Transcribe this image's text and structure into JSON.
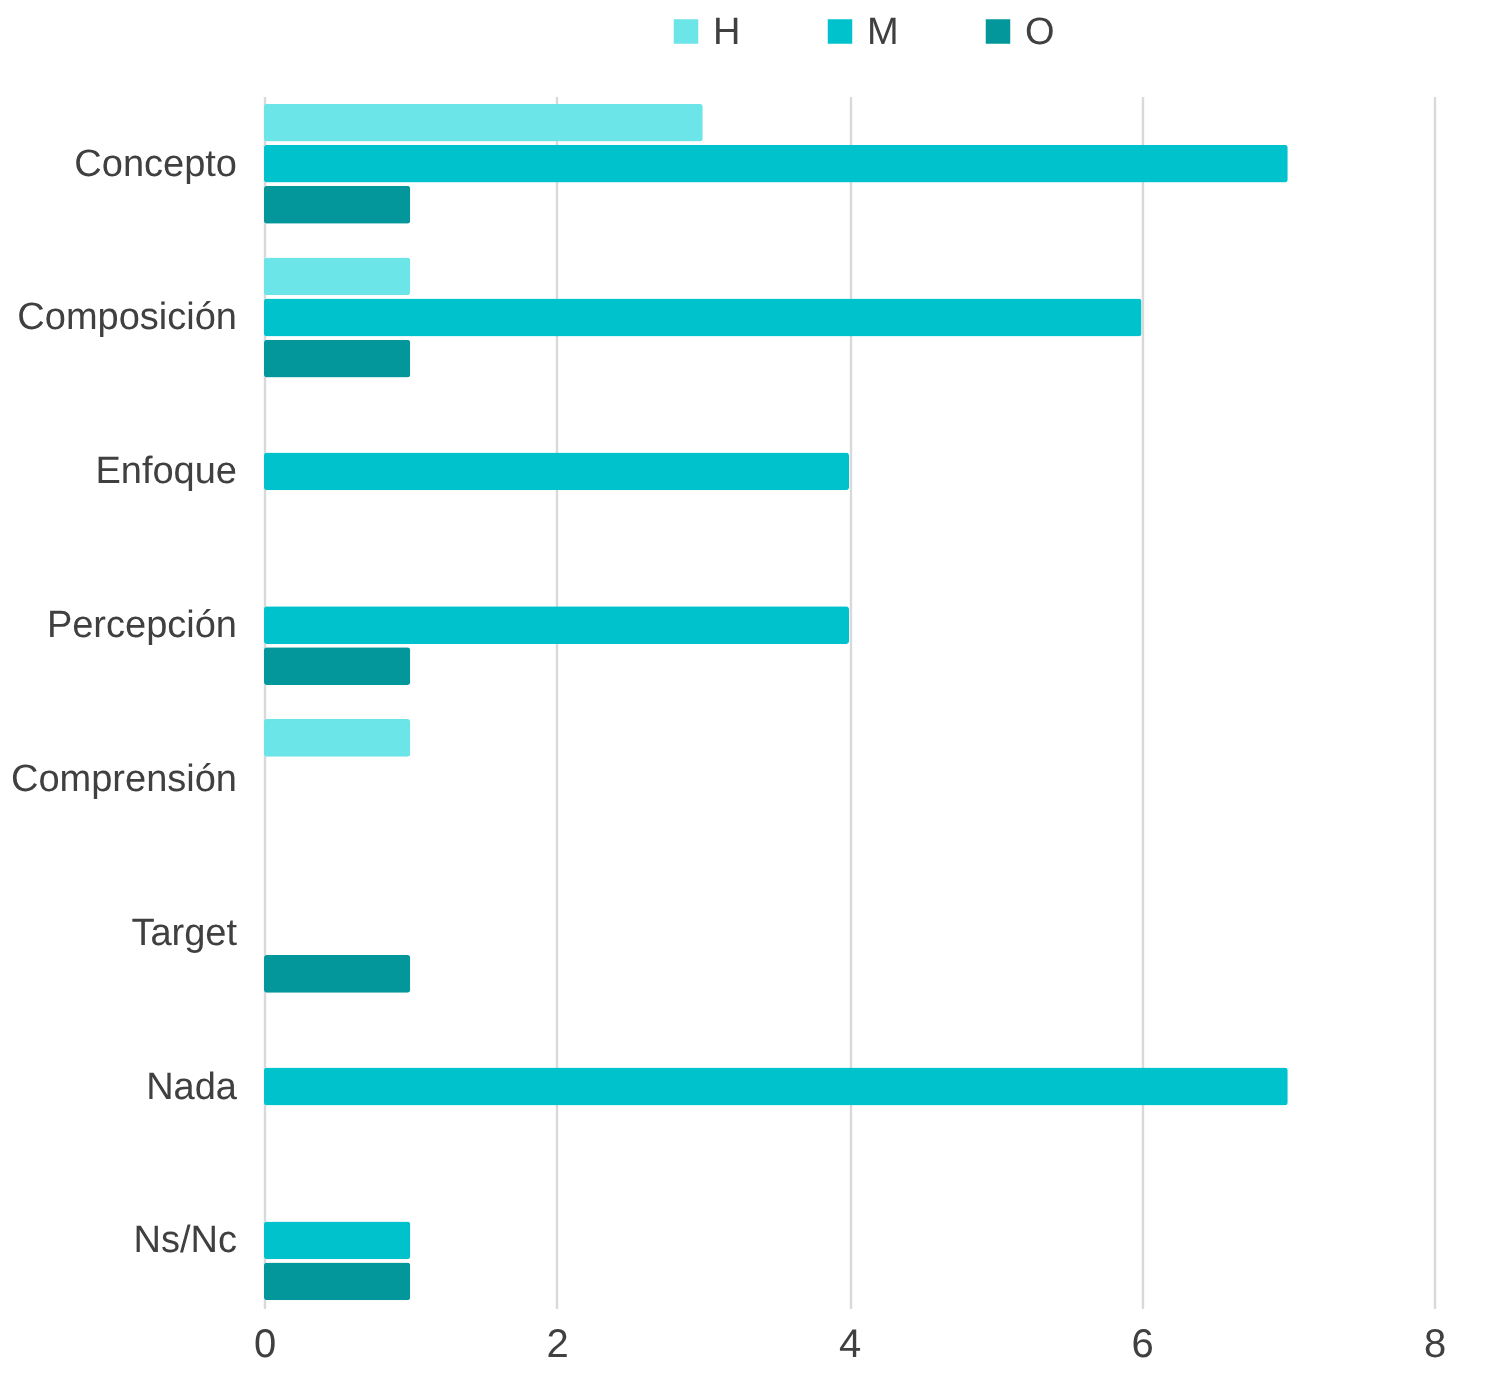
{
  "chart_data": {
    "type": "bar",
    "orientation": "horizontal",
    "categories": [
      "Concepto",
      "Composición",
      "Enfoque",
      "Percepción",
      "Comprensión",
      "Target",
      "Nada",
      "Ns/Nc"
    ],
    "series": [
      {
        "name": "H",
        "color": "#6ce5e8",
        "values": [
          3,
          1,
          null,
          null,
          1,
          null,
          null,
          null
        ]
      },
      {
        "name": "M",
        "color": "#00c2cc",
        "values": [
          7,
          6,
          4,
          4,
          null,
          null,
          7,
          1
        ]
      },
      {
        "name": "O",
        "color": "#03969b",
        "values": [
          1,
          1,
          null,
          1,
          null,
          1,
          null,
          1
        ]
      }
    ],
    "xlim": [
      0,
      8
    ],
    "xticks": [
      0,
      2,
      4,
      6,
      8
    ],
    "grid": "x",
    "legend": "top"
  }
}
